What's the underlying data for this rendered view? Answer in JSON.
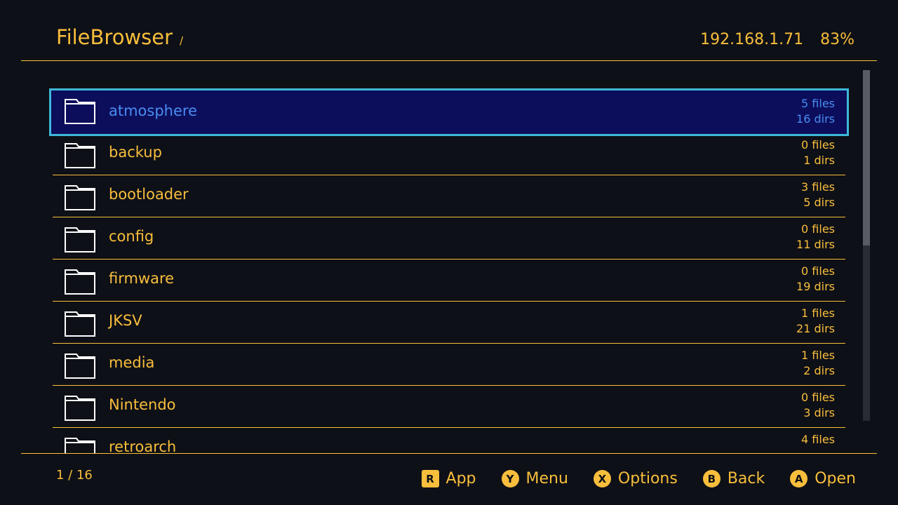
{
  "header": {
    "title": "FileBrowser",
    "path": "/",
    "ip": "192.168.1.71",
    "battery": "83%"
  },
  "items": [
    {
      "name": "atmosphere",
      "files": "5 files",
      "dirs": "16 dirs"
    },
    {
      "name": "backup",
      "files": "0 files",
      "dirs": "1 dirs"
    },
    {
      "name": "bootloader",
      "files": "3 files",
      "dirs": "5 dirs"
    },
    {
      "name": "config",
      "files": "0 files",
      "dirs": "11 dirs"
    },
    {
      "name": "firmware",
      "files": "0 files",
      "dirs": "19 dirs"
    },
    {
      "name": "JKSV",
      "files": "1 files",
      "dirs": "21 dirs"
    },
    {
      "name": "media",
      "files": "1 files",
      "dirs": "2 dirs"
    },
    {
      "name": "Nintendo",
      "files": "0 files",
      "dirs": "3 dirs"
    },
    {
      "name": "retroarch",
      "files": "4 files",
      "dirs": ""
    }
  ],
  "selected_index": 0,
  "scroll_fraction": 0.5,
  "footer": {
    "page": "1 / 16",
    "hints": [
      {
        "key": "R",
        "label": "App"
      },
      {
        "key": "Y",
        "label": "Menu"
      },
      {
        "key": "X",
        "label": "Options"
      },
      {
        "key": "B",
        "label": "Back"
      },
      {
        "key": "A",
        "label": "Open"
      }
    ]
  },
  "colors": {
    "accent": "#f8be3c",
    "selection_bg": "#0c0e5c",
    "selection_border": "#3fb8d8",
    "selection_text": "#4a8cf0"
  }
}
